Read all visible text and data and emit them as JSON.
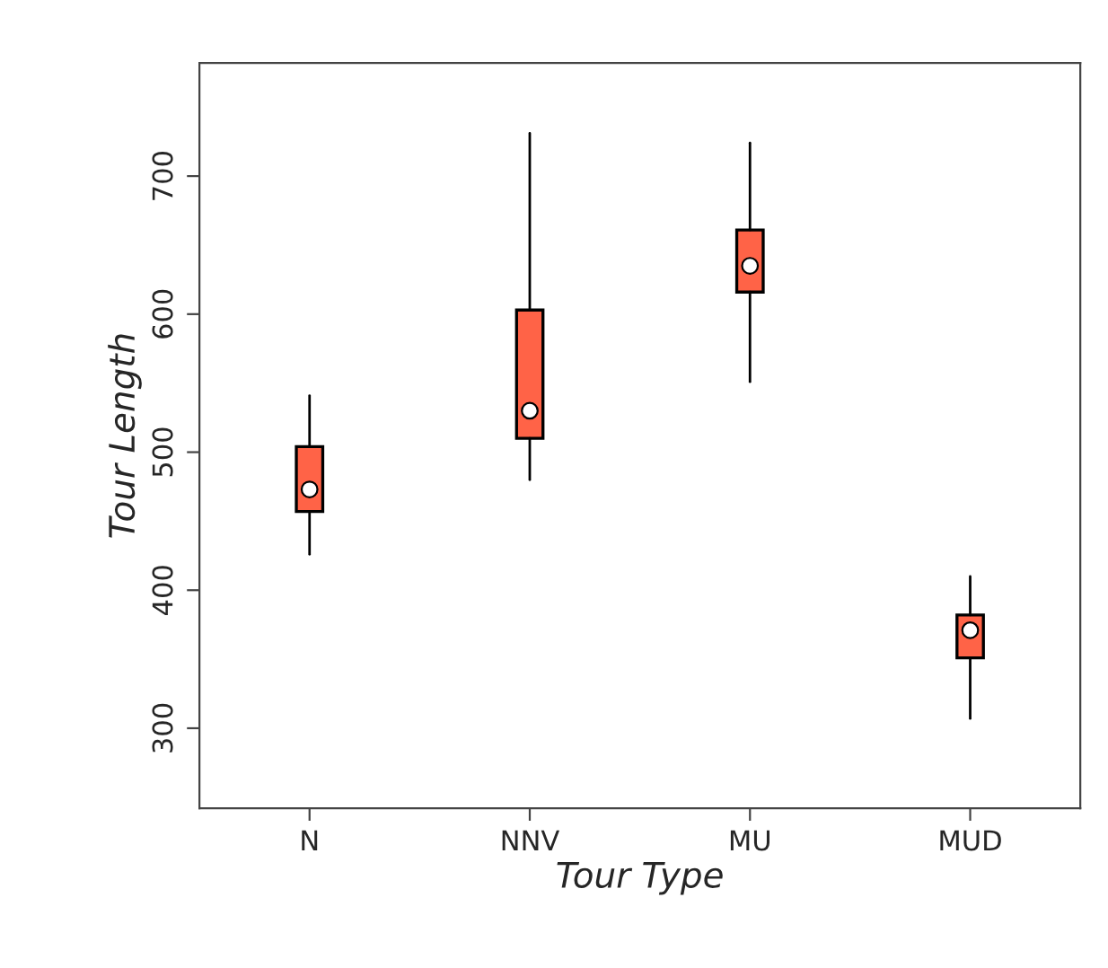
{
  "chart_data": {
    "type": "box",
    "xlabel": "Tour Type",
    "ylabel": "Tour Length",
    "categories": [
      "N",
      "NNV",
      "MU",
      "MUD"
    ],
    "color": "#ff6347",
    "boxes": [
      {
        "low": 426,
        "q1": 457,
        "median": 473,
        "q3": 504,
        "high": 541
      },
      {
        "low": 480,
        "q1": 510,
        "median": 530,
        "q3": 603,
        "high": 731
      },
      {
        "low": 551,
        "q1": 616,
        "median": 635,
        "q3": 661,
        "high": 724
      },
      {
        "low": 307,
        "q1": 351,
        "median": 371,
        "q3": 382,
        "high": 410
      }
    ],
    "ylim": [
      242,
      782
    ],
    "yticks": [
      300,
      400,
      500,
      600,
      700
    ],
    "grid": false
  }
}
